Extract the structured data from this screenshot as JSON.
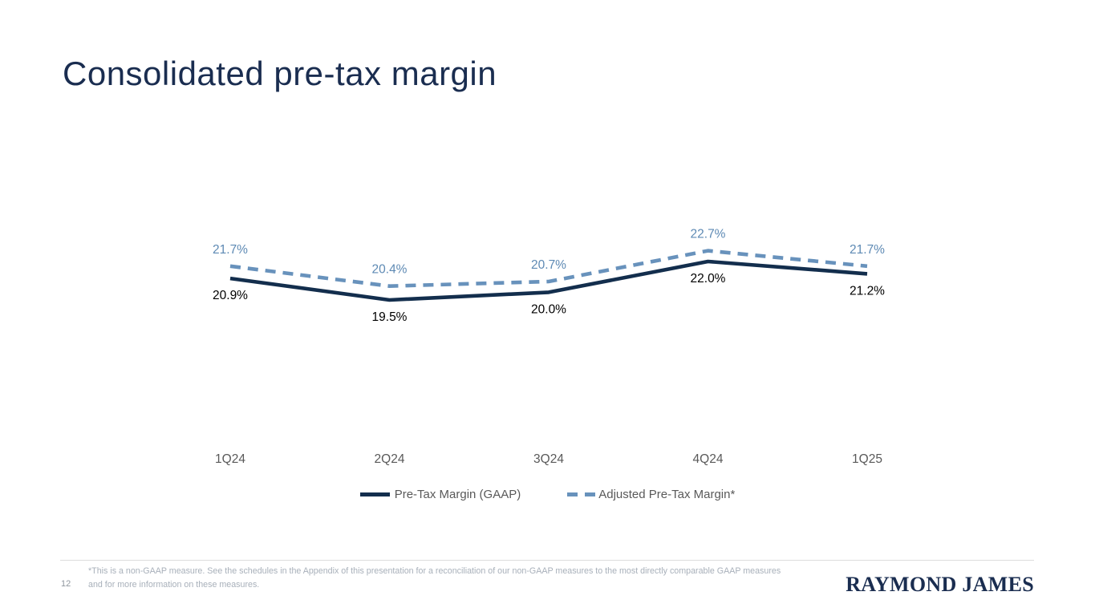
{
  "slide": {
    "title": "Consolidated pre-tax margin",
    "page_number": "12",
    "footnote": "*This is a non-GAAP measure. See the schedules in the Appendix of this presentation for a reconciliation of our non-GAAP measures to the most directly comparable GAAP measures and for more information on these measures.",
    "logo_text": "RAYMOND JAMES"
  },
  "chart_data": {
    "type": "line",
    "title": "",
    "xlabel": "",
    "ylabel": "",
    "categories": [
      "1Q24",
      "2Q24",
      "3Q24",
      "4Q24",
      "1Q25"
    ],
    "series": [
      {
        "name": "Pre-Tax Margin (GAAP)",
        "values": [
          20.9,
          19.5,
          20.0,
          22.0,
          21.2
        ],
        "style": "solid",
        "color": "#132e4d",
        "label_color": "#000000",
        "label_position": "below"
      },
      {
        "name": "Adjusted Pre-Tax Margin*",
        "values": [
          21.7,
          20.4,
          20.7,
          22.7,
          21.7
        ],
        "style": "dashed",
        "color": "#6892bc",
        "label_color": "#5e8ab4",
        "label_position": "above"
      }
    ],
    "data_label_format": "0.0%",
    "axis_text_color": "#595959",
    "gridlines": false,
    "axes_hidden": true,
    "legend_position": "bottom"
  }
}
